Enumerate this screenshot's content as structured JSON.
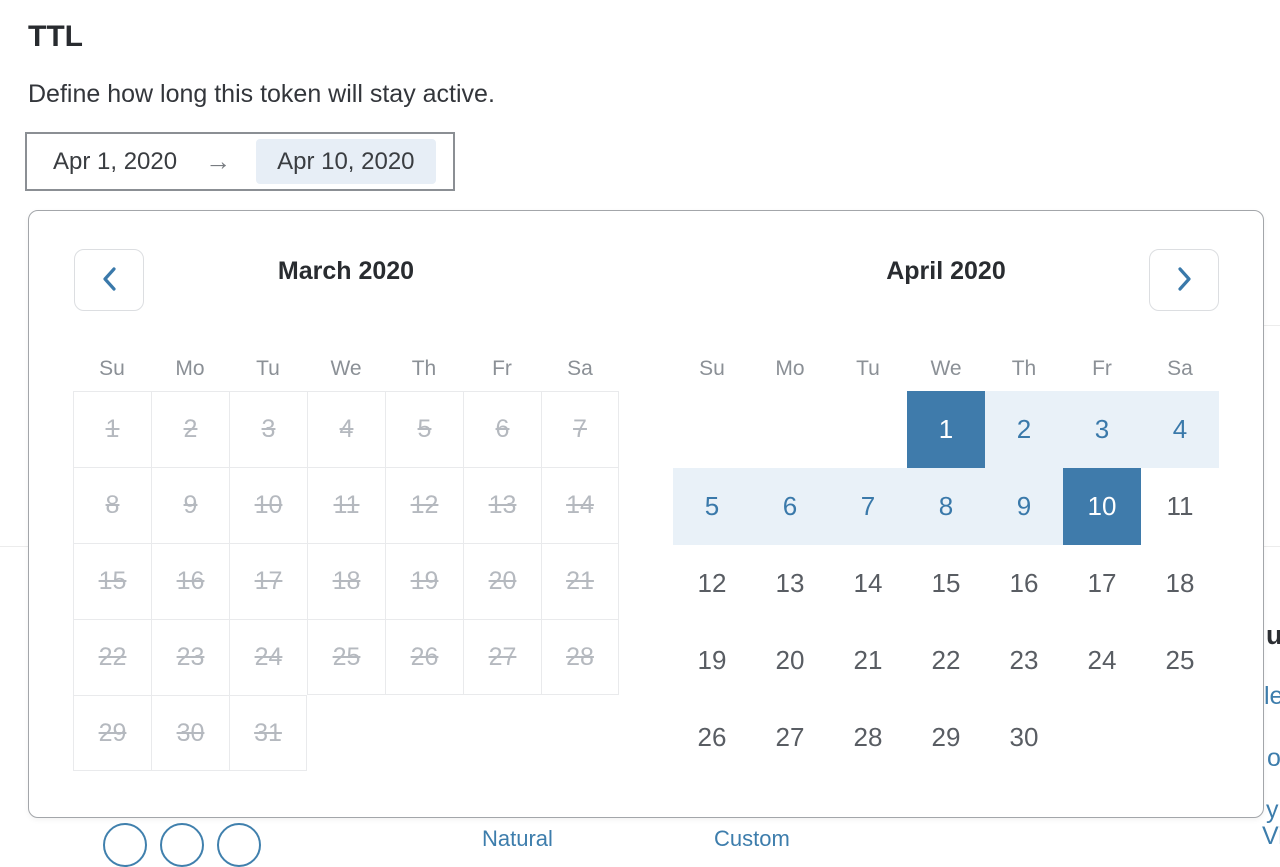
{
  "header": {
    "title": "TTL",
    "subtitle": "Define how long this token will stay active."
  },
  "date_input": {
    "start_value": "Apr 1, 2020",
    "arrow_icon": "→",
    "end_value": "Apr 10, 2020"
  },
  "calendar": {
    "prev_icon": "chevron-left",
    "next_icon": "chevron-right",
    "weekdays": [
      "Su",
      "Mo",
      "Tu",
      "We",
      "Th",
      "Fr",
      "Sa"
    ],
    "months": [
      {
        "id": "march",
        "title": "March 2020",
        "disabled": true,
        "bordered": true,
        "weeks": [
          [
            1,
            2,
            3,
            4,
            5,
            6,
            7
          ],
          [
            8,
            9,
            10,
            11,
            12,
            13,
            14
          ],
          [
            15,
            16,
            17,
            18,
            19,
            20,
            21
          ],
          [
            22,
            23,
            24,
            25,
            26,
            27,
            28
          ],
          [
            29,
            30,
            31,
            null,
            null,
            null,
            null
          ]
        ]
      },
      {
        "id": "april",
        "title": "April 2020",
        "disabled": false,
        "bordered": false,
        "range_start": 1,
        "range_end": 10,
        "weeks": [
          [
            null,
            null,
            null,
            1,
            2,
            3,
            4
          ],
          [
            5,
            6,
            7,
            8,
            9,
            10,
            11
          ],
          [
            12,
            13,
            14,
            15,
            16,
            17,
            18
          ],
          [
            19,
            20,
            21,
            22,
            23,
            24,
            25
          ],
          [
            26,
            27,
            28,
            29,
            30,
            null,
            null
          ]
        ]
      }
    ]
  },
  "colors": {
    "accent_blue": "#3a79aa",
    "selected_bg": "#3f7bab",
    "selected_text": "#ffffff",
    "range_bg": "#e9f1f8",
    "disabled_text": "#b5b9bf",
    "day_text": "#595d63",
    "weekday_text": "#8b9096",
    "end_value_bg": "#e7eef6"
  },
  "background_fragments": {
    "heading_fragment": "u",
    "link_fragment_1": "le",
    "link_fragment_2": "o",
    "link_fragment_3": "y",
    "link_fragment_4": "Vi",
    "link_fragment_5": "Natural",
    "link_fragment_6": "Custom"
  }
}
